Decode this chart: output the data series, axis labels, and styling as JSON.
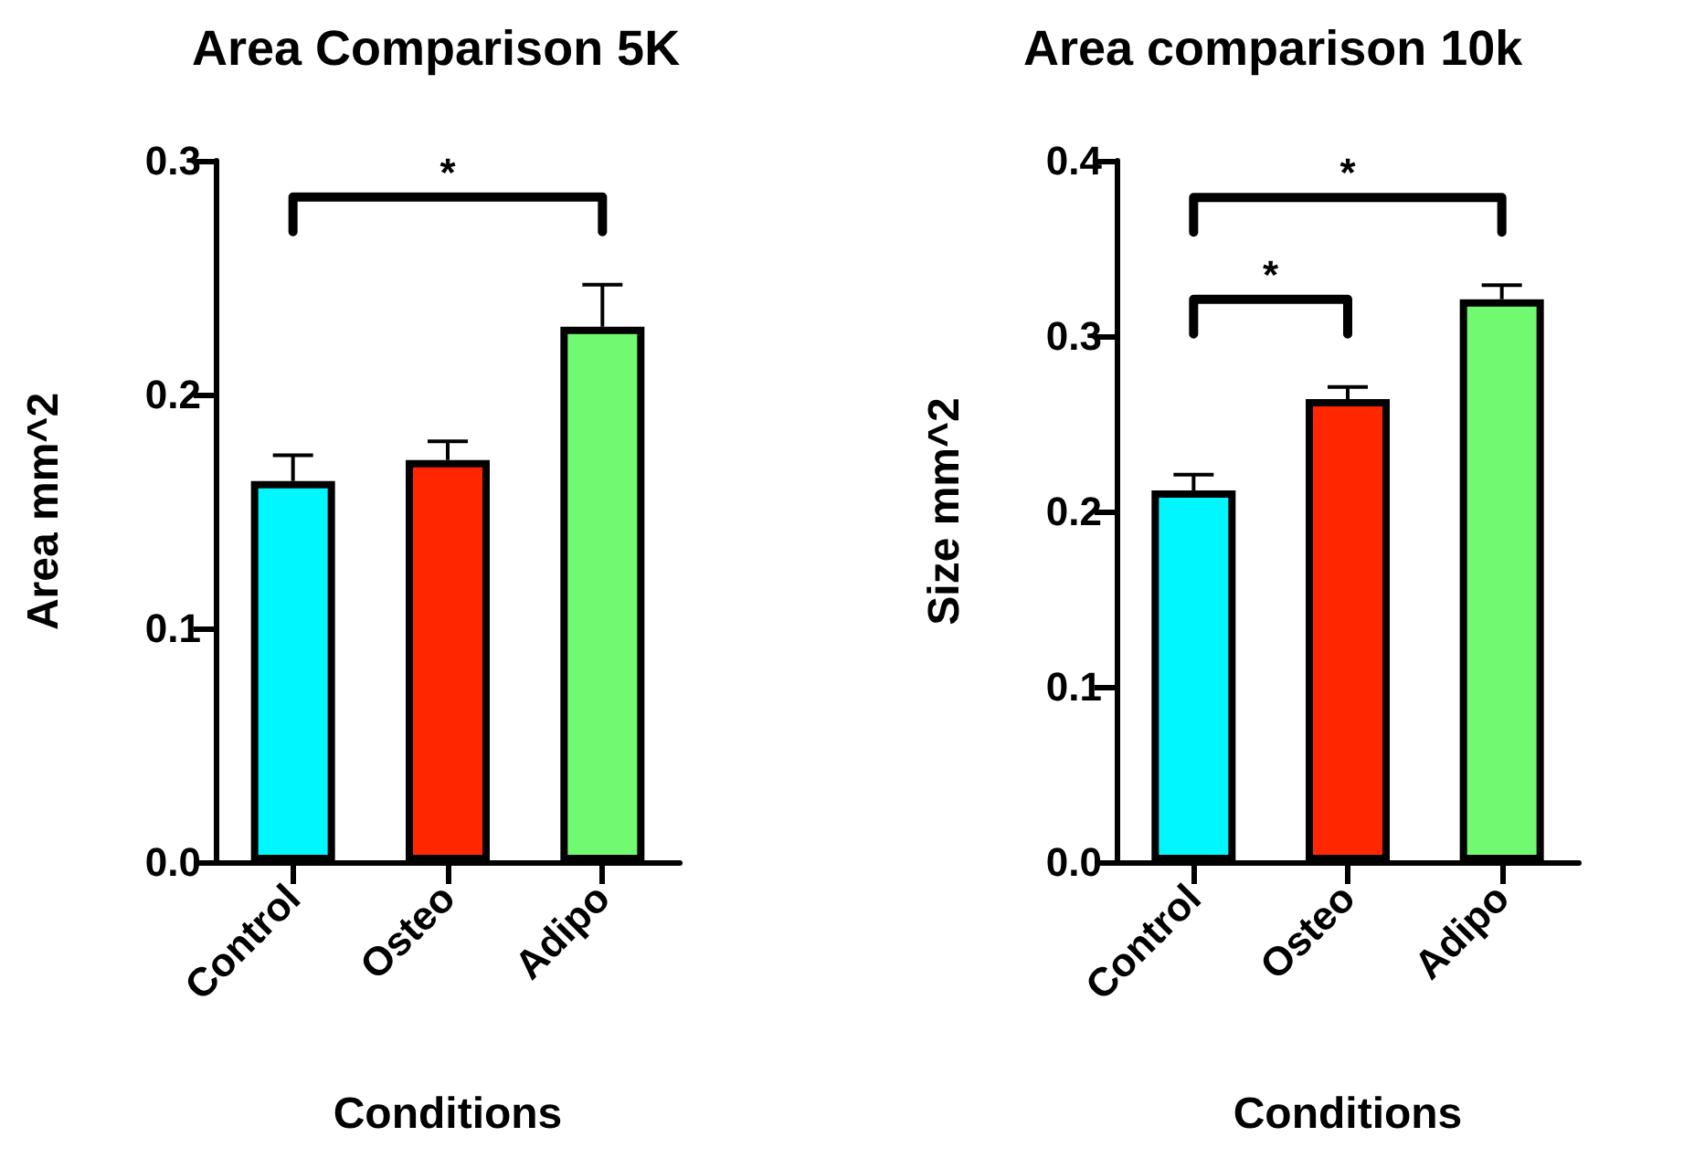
{
  "chart_data": [
    {
      "type": "bar",
      "title": "Area Comparison 5K",
      "xlabel": "Conditions",
      "ylabel": "Area mm^2",
      "categories": [
        "Control",
        "Osteo",
        "Adipo"
      ],
      "values": [
        0.163,
        0.172,
        0.229
      ],
      "colors": [
        "#00f7ff",
        "#ff2600",
        "#72f972"
      ],
      "errors": [
        [
          0.163,
          0.174
        ],
        [
          0.172,
          0.18
        ],
        [
          0.229,
          0.247
        ]
      ],
      "ylim": [
        0,
        0.3
      ],
      "yticks": [
        {
          "value": 0,
          "label": "0.0"
        },
        {
          "value": 0.1,
          "label": "0.1"
        },
        {
          "value": 0.2,
          "label": "0.2"
        },
        {
          "value": 0.3,
          "label": "0.3"
        }
      ],
      "grid": false,
      "annotations": [
        "*"
      ]
    },
    {
      "type": "bar",
      "title": "Area comparison 10k",
      "xlabel": "Conditions",
      "ylabel": "Size mm^2",
      "categories": [
        "Control",
        "Osteo",
        "Adipo"
      ],
      "values": [
        0.212,
        0.264,
        0.321
      ],
      "colors": [
        "#00f7ff",
        "#ff2600",
        "#72f972"
      ],
      "errors": [
        [
          0.212,
          0.221
        ],
        [
          0.264,
          0.271
        ],
        [
          0.321,
          0.329
        ]
      ],
      "ylim": [
        0,
        0.4
      ],
      "yticks": [
        {
          "value": 0,
          "label": "0.0"
        },
        {
          "value": 0.1,
          "label": "0.1"
        },
        {
          "value": 0.2,
          "label": "0.2"
        },
        {
          "value": 0.3,
          "label": "0.3"
        },
        {
          "value": 0.4,
          "label": "0.4"
        }
      ],
      "grid": false,
      "annotations": [
        "*",
        "*"
      ]
    }
  ]
}
